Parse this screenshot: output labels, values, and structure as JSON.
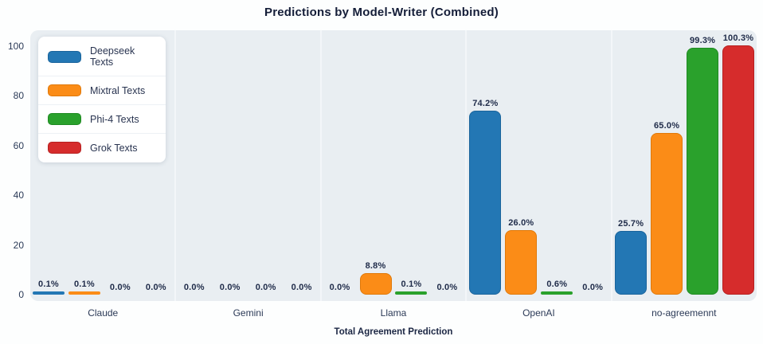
{
  "chart_data": {
    "type": "bar",
    "title": "Predictions by Model-Writer (Combined)",
    "xlabel": "Total Agreement Prediction",
    "ylabel": "",
    "categories": [
      "Claude",
      "Gemini",
      "Llama",
      "OpenAI",
      "no-agreemennt"
    ],
    "series": [
      {
        "name": "Deepseek Texts",
        "color": "#2377b4",
        "border_color": "#1a649c",
        "values": [
          0.1,
          0.0,
          0.0,
          74.2,
          25.7
        ],
        "labels": [
          "0.1%",
          "0.0%",
          "0.0%",
          "74.2%",
          "25.7%"
        ]
      },
      {
        "name": "Mixtral Texts",
        "color": "#fb8c17",
        "border_color": "#e0790a",
        "values": [
          0.1,
          0.0,
          8.8,
          26.0,
          65.0
        ],
        "labels": [
          "0.1%",
          "0.0%",
          "8.8%",
          "26.0%",
          "65.0%"
        ]
      },
      {
        "name": "Phi-4 Texts",
        "color": "#2aa12c",
        "border_color": "#1f8a22",
        "values": [
          0.0,
          0.0,
          0.1,
          0.6,
          99.3
        ],
        "labels": [
          "0.0%",
          "0.0%",
          "0.1%",
          "0.6%",
          "99.3%"
        ]
      },
      {
        "name": "Grok Texts",
        "color": "#d62c2c",
        "border_color": "#b62121",
        "values": [
          0.0,
          0.0,
          0.0,
          0.0,
          100.3
        ],
        "labels": [
          "0.0%",
          "0.0%",
          "0.0%",
          "0.0%",
          "100.3%"
        ]
      }
    ],
    "y_ticks": [
      0,
      20,
      40,
      60,
      80,
      100
    ],
    "ylim": [
      0,
      106
    ],
    "grid": false,
    "legend_position": "upper-left",
    "value_labels_shown": true,
    "panel_background": "#e9eef2"
  }
}
